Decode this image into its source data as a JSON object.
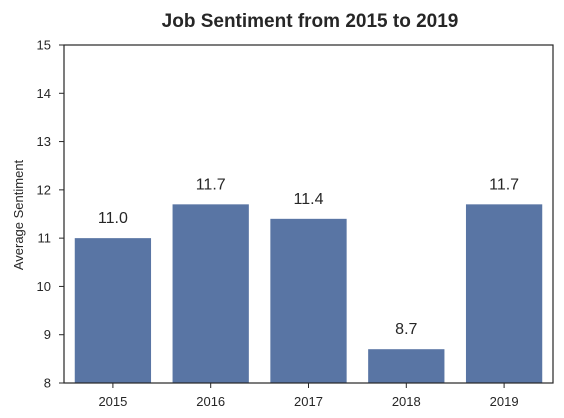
{
  "chart_data": {
    "type": "bar",
    "title": "Job Sentiment from 2015 to 2019",
    "xlabel": "",
    "ylabel": "Average Sentiment",
    "categories": [
      "2015",
      "2016",
      "2017",
      "2018",
      "2019"
    ],
    "values": [
      11.0,
      11.7,
      11.4,
      8.7,
      11.7
    ],
    "data_labels": [
      "11.0",
      "11.7",
      "11.4",
      "8.7",
      "11.7"
    ],
    "ylim": [
      8,
      15
    ],
    "yticks": [
      8,
      9,
      10,
      11,
      12,
      13,
      14,
      15
    ],
    "grid": false,
    "legend": "none",
    "bar_color": "#5975a4",
    "frame_color": "#262626"
  }
}
